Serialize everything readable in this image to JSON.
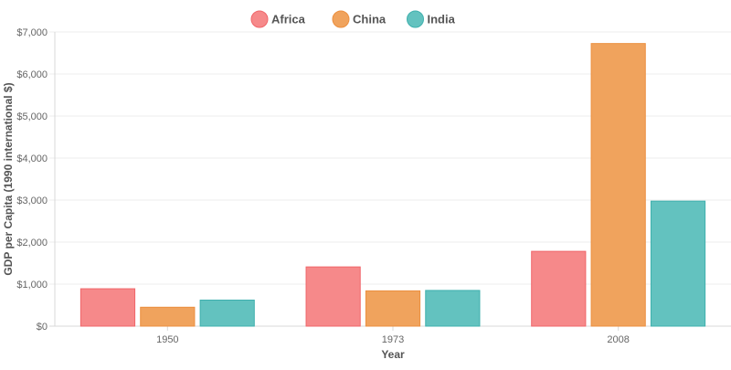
{
  "chart_data": {
    "type": "bar",
    "title": "",
    "xlabel": "Year",
    "ylabel": "GDP per Capita (1990 international $)",
    "categories": [
      "1950",
      "1973",
      "2008"
    ],
    "series": [
      {
        "name": "Africa",
        "values": [
          890,
          1410,
          1780
        ],
        "color": "#f6898a",
        "border": "#f0666a"
      },
      {
        "name": "China",
        "values": [
          450,
          840,
          6725
        ],
        "color": "#f0a35d",
        "border": "#ec8f3f"
      },
      {
        "name": "India",
        "values": [
          620,
          850,
          2975
        ],
        "color": "#63c2bf",
        "border": "#3fb0ad"
      }
    ],
    "ylim": [
      0,
      7000
    ],
    "yticks": [
      0,
      1000,
      2000,
      3000,
      4000,
      5000,
      6000,
      7000
    ],
    "ytick_labels": [
      "$0",
      "$1,000",
      "$2,000",
      "$3,000",
      "$4,000",
      "$5,000",
      "$6,000",
      "$7,000"
    ],
    "grid": true,
    "legend_position": "top"
  }
}
